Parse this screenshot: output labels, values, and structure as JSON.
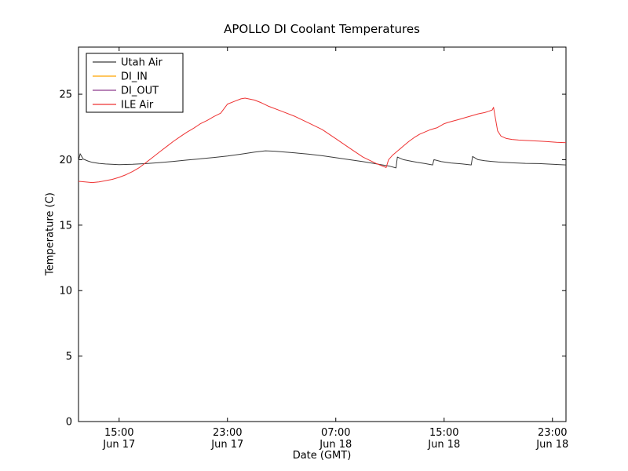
{
  "figure": {
    "background": "#ffffff",
    "axis_color": "#000000"
  },
  "chart_data": {
    "type": "line",
    "title": "APOLLO DI Coolant Temperatures",
    "xlabel": "Date (GMT)",
    "ylabel": "Temperature (C)",
    "grid": false,
    "legend_position": "upper-left",
    "x_unit": "hours since Jun 17 12:00 GMT",
    "xlim": [
      0,
      36
    ],
    "ylim": [
      0,
      28.6
    ],
    "yticks": [
      0,
      5,
      10,
      15,
      20,
      25
    ],
    "xticks": [
      {
        "t": 3,
        "time": "15:00",
        "date": "Jun 17"
      },
      {
        "t": 11,
        "time": "23:00",
        "date": "Jun 17"
      },
      {
        "t": 19,
        "time": "07:00",
        "date": "Jun 18"
      },
      {
        "t": 27,
        "time": "15:00",
        "date": "Jun 18"
      },
      {
        "t": 35,
        "time": "23:00",
        "date": "Jun 18"
      }
    ],
    "series": [
      {
        "name": "Utah Air",
        "color": "#3a3a3a",
        "visible": true,
        "points": [
          [
            0,
            19.9
          ],
          [
            0.12,
            20.45
          ],
          [
            0.35,
            20.05
          ],
          [
            0.7,
            19.9
          ],
          [
            1,
            19.8
          ],
          [
            1.5,
            19.72
          ],
          [
            2,
            19.67
          ],
          [
            3,
            19.62
          ],
          [
            4,
            19.65
          ],
          [
            5,
            19.7
          ],
          [
            6,
            19.78
          ],
          [
            7,
            19.87
          ],
          [
            8,
            19.97
          ],
          [
            9,
            20.07
          ],
          [
            10,
            20.17
          ],
          [
            11,
            20.28
          ],
          [
            12,
            20.42
          ],
          [
            13,
            20.58
          ],
          [
            13.8,
            20.68
          ],
          [
            14.5,
            20.65
          ],
          [
            15,
            20.6
          ],
          [
            16,
            20.52
          ],
          [
            17,
            20.42
          ],
          [
            18,
            20.3
          ],
          [
            19,
            20.15
          ],
          [
            20,
            20.0
          ],
          [
            21,
            19.85
          ],
          [
            22,
            19.68
          ],
          [
            23,
            19.5
          ],
          [
            23.45,
            19.37
          ],
          [
            23.55,
            20.2
          ],
          [
            24,
            20.0
          ],
          [
            24.5,
            19.9
          ],
          [
            25,
            19.8
          ],
          [
            25.6,
            19.7
          ],
          [
            26.15,
            19.6
          ],
          [
            26.25,
            20.0
          ],
          [
            26.8,
            19.85
          ],
          [
            27.5,
            19.75
          ],
          [
            28.3,
            19.68
          ],
          [
            29.0,
            19.6
          ],
          [
            29.1,
            20.25
          ],
          [
            29.5,
            20.0
          ],
          [
            30,
            19.92
          ],
          [
            30.5,
            19.87
          ],
          [
            31,
            19.82
          ],
          [
            32,
            19.76
          ],
          [
            33,
            19.72
          ],
          [
            34,
            19.7
          ],
          [
            35,
            19.65
          ],
          [
            36,
            19.6
          ]
        ]
      },
      {
        "name": "DI_IN",
        "color": "#ffa500",
        "visible": false,
        "points": []
      },
      {
        "name": "DI_OUT",
        "color": "#8e3a8e",
        "visible": false,
        "points": []
      },
      {
        "name": "ILE Air",
        "color": "#ee3333",
        "visible": true,
        "points": [
          [
            0,
            18.35
          ],
          [
            0.5,
            18.3
          ],
          [
            1,
            18.25
          ],
          [
            1.5,
            18.3
          ],
          [
            2,
            18.4
          ],
          [
            2.5,
            18.5
          ],
          [
            3,
            18.65
          ],
          [
            3.5,
            18.85
          ],
          [
            4,
            19.1
          ],
          [
            4.5,
            19.4
          ],
          [
            5,
            19.8
          ],
          [
            5.5,
            20.2
          ],
          [
            6,
            20.6
          ],
          [
            6.5,
            21.0
          ],
          [
            7,
            21.4
          ],
          [
            7.5,
            21.75
          ],
          [
            8,
            22.1
          ],
          [
            8.5,
            22.4
          ],
          [
            9,
            22.75
          ],
          [
            9.5,
            23.0
          ],
          [
            10,
            23.3
          ],
          [
            10.5,
            23.55
          ],
          [
            11,
            24.25
          ],
          [
            11.5,
            24.45
          ],
          [
            12,
            24.65
          ],
          [
            12.3,
            24.7
          ],
          [
            13,
            24.55
          ],
          [
            13.5,
            24.35
          ],
          [
            14,
            24.1
          ],
          [
            15,
            23.7
          ],
          [
            16,
            23.3
          ],
          [
            17,
            22.8
          ],
          [
            18,
            22.3
          ],
          [
            19,
            21.6
          ],
          [
            20,
            20.9
          ],
          [
            21,
            20.2
          ],
          [
            22,
            19.7
          ],
          [
            22.72,
            19.4
          ],
          [
            22.9,
            20.0
          ],
          [
            23.2,
            20.35
          ],
          [
            23.6,
            20.7
          ],
          [
            24.0,
            21.05
          ],
          [
            24.4,
            21.4
          ],
          [
            24.8,
            21.7
          ],
          [
            25.2,
            21.95
          ],
          [
            26,
            22.3
          ],
          [
            26.5,
            22.45
          ],
          [
            27,
            22.75
          ],
          [
            27.3,
            22.85
          ],
          [
            28,
            23.05
          ],
          [
            28.5,
            23.2
          ],
          [
            29,
            23.35
          ],
          [
            29.5,
            23.5
          ],
          [
            30,
            23.6
          ],
          [
            30.3,
            23.7
          ],
          [
            30.55,
            23.8
          ],
          [
            30.65,
            24.0
          ],
          [
            30.75,
            23.4
          ],
          [
            30.95,
            22.2
          ],
          [
            31.2,
            21.8
          ],
          [
            31.6,
            21.62
          ],
          [
            32,
            21.55
          ],
          [
            32.5,
            21.5
          ],
          [
            33,
            21.47
          ],
          [
            34,
            21.42
          ],
          [
            34.6,
            21.38
          ],
          [
            35.3,
            21.33
          ],
          [
            36,
            21.3
          ]
        ]
      }
    ]
  }
}
